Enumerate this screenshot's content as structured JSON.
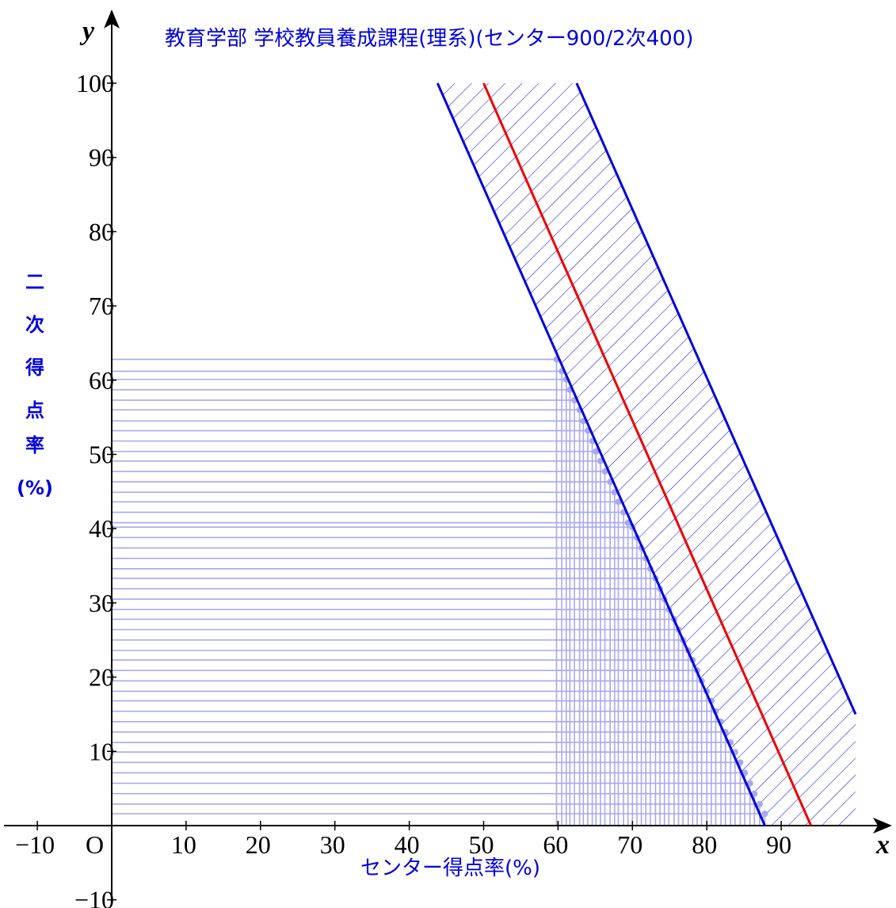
{
  "chart_data": {
    "type": "line",
    "title": "教育学部 学校教員養成課程(理系)(センター900/2次400)",
    "xlabel": "センター得点率(%)",
    "ylabel_chars": [
      "二",
      "次",
      "得",
      "点",
      "率",
      "(%)"
    ],
    "x_var": "x",
    "y_var": "y",
    "origin_label": "O",
    "xlim": [
      -14,
      100
    ],
    "ylim": [
      -10,
      100
    ],
    "x_ticks": [
      -10,
      10,
      20,
      30,
      40,
      50,
      60,
      70,
      80,
      90
    ],
    "x_tick_labels": [
      "−10",
      "10",
      "20",
      "30",
      "40",
      "50",
      "60",
      "70",
      "80",
      "90"
    ],
    "y_ticks": [
      -10,
      10,
      20,
      30,
      40,
      50,
      60,
      70,
      80,
      90,
      100
    ],
    "y_tick_labels": [
      "−10",
      "10",
      "20",
      "30",
      "40",
      "50",
      "60",
      "70",
      "80",
      "90",
      "100"
    ],
    "series": [
      {
        "role": "center-line",
        "color": "#ee0000",
        "x": [
          50.0,
          94.0
        ],
        "y": [
          100,
          0
        ]
      },
      {
        "role": "lower-bound",
        "color": "#0000dd",
        "x": [
          43.8,
          87.8
        ],
        "y": [
          100,
          0
        ]
      },
      {
        "role": "upper-bound",
        "color": "#0000dd",
        "x": [
          62.5,
          100.0
        ],
        "y": [
          100,
          15.0
        ]
      }
    ],
    "band": {
      "fill": "hatched",
      "color": "#0000dd"
    },
    "applicant_points": {
      "color": "#a8a8f0",
      "x": [
        59.8,
        60.5,
        61.1,
        61.6,
        62.2,
        62.9,
        63.4,
        64.0,
        64.6,
        65.1,
        65.7,
        66.3,
        67.0,
        67.6,
        68.1,
        68.8,
        69.4,
        70.0,
        70.6,
        71.2,
        71.8,
        72.4,
        73.1,
        73.7,
        74.3,
        74.9,
        75.6,
        76.2,
        76.8,
        77.5,
        78.1,
        78.7,
        79.3,
        80.0,
        80.6,
        81.2,
        81.9,
        82.5,
        83.2,
        83.8,
        84.5,
        85.1,
        85.8,
        86.4,
        87.1,
        87.8
      ],
      "y": [
        62.8,
        61.2,
        60.1,
        58.7,
        57.3,
        56.0,
        54.5,
        53.2,
        51.8,
        50.4,
        49.1,
        47.7,
        46.3,
        44.9,
        43.6,
        42.2,
        40.8,
        40.2,
        38.8,
        37.4,
        36.0,
        34.6,
        33.3,
        31.9,
        30.5,
        29.1,
        27.8,
        26.4,
        25.0,
        23.6,
        22.3,
        20.9,
        19.5,
        18.1,
        16.8,
        15.4,
        14.0,
        12.6,
        11.2,
        9.9,
        8.5,
        7.1,
        5.7,
        4.3,
        2.9,
        1.6
      ]
    },
    "grid": false
  }
}
